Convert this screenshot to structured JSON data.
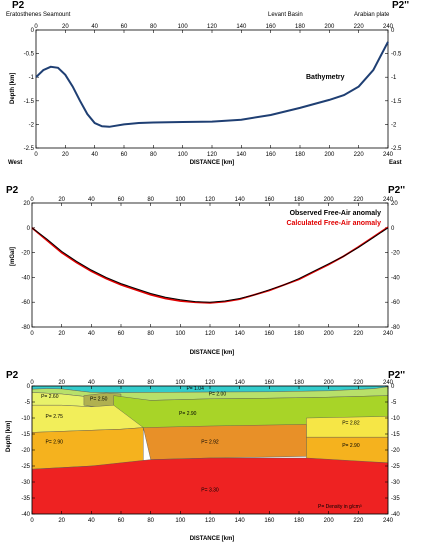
{
  "chart_data": [
    {
      "id": "bathymetry",
      "type": "line",
      "corner_left": "P2",
      "corner_right": "P2''",
      "top_labels": [
        "Eratosthenes Seamount",
        "Levant Basin",
        "Arabian plate"
      ],
      "series_label": "Bathymetry",
      "xlabel": "DISTANCE [km]",
      "ylabel": "Depth [km]",
      "end_left": "West",
      "end_right": "East",
      "xlim": [
        0,
        240
      ],
      "ylim": [
        -2.5,
        0
      ],
      "xticks": [
        0,
        20,
        40,
        60,
        80,
        100,
        120,
        140,
        160,
        180,
        200,
        220,
        240
      ],
      "yticks": [
        0,
        -0.5,
        -1,
        -1.5,
        -2,
        -2.5
      ],
      "line_color": "#1f3f73",
      "x": [
        0,
        5,
        10,
        15,
        20,
        25,
        30,
        35,
        40,
        45,
        50,
        60,
        70,
        80,
        100,
        120,
        140,
        160,
        180,
        200,
        210,
        220,
        230,
        240
      ],
      "y": [
        -1.0,
        -0.85,
        -0.78,
        -0.8,
        -0.95,
        -1.2,
        -1.5,
        -1.78,
        -1.97,
        -2.04,
        -2.05,
        -2.0,
        -1.97,
        -1.96,
        -1.95,
        -1.94,
        -1.9,
        -1.8,
        -1.65,
        -1.48,
        -1.38,
        -1.2,
        -0.85,
        -0.25
      ]
    },
    {
      "id": "gravity",
      "type": "line",
      "corner_left": "P2",
      "corner_right": "P2''",
      "xlabel": "DISTANCE [km]",
      "ylabel": "[mGal]",
      "xlim": [
        0,
        240
      ],
      "ylim": [
        -80,
        20
      ],
      "xticks": [
        0,
        20,
        40,
        60,
        80,
        100,
        120,
        140,
        160,
        180,
        200,
        220,
        240
      ],
      "yticks": [
        20,
        0,
        -20,
        -40,
        -60,
        -80
      ],
      "series": [
        {
          "name": "Observed Free-Air anomaly",
          "color": "#000000",
          "x": [
            0,
            10,
            20,
            30,
            40,
            50,
            60,
            70,
            80,
            90,
            100,
            110,
            120,
            130,
            140,
            150,
            160,
            170,
            180,
            190,
            200,
            210,
            220,
            230,
            240
          ],
          "y": [
            0,
            -9,
            -19,
            -27,
            -34,
            -40,
            -45,
            -49,
            -53,
            -56,
            -58,
            -59.5,
            -60,
            -59,
            -57,
            -54,
            -50,
            -46,
            -41,
            -35,
            -29,
            -23,
            -16,
            -8,
            0
          ]
        },
        {
          "name": "Calculated Free-Air anomaly",
          "color": "#e00000",
          "x": [
            0,
            10,
            20,
            30,
            40,
            50,
            60,
            70,
            80,
            90,
            100,
            110,
            120,
            130,
            140,
            150,
            160,
            170,
            180,
            190,
            200,
            210,
            220,
            230,
            240
          ],
          "y": [
            0,
            -10,
            -20,
            -28,
            -35,
            -41,
            -46,
            -50,
            -54,
            -57,
            -59,
            -60,
            -60.5,
            -59.5,
            -57.5,
            -54,
            -50.5,
            -46,
            -41.5,
            -35.5,
            -29.5,
            -23,
            -15.5,
            -7.5,
            0.5
          ]
        }
      ]
    },
    {
      "id": "density_model",
      "type": "area",
      "corner_left": "P2",
      "corner_right": "P2''",
      "xlabel": "DISTANCE [km]",
      "ylabel": "Depth [km]",
      "xlim": [
        0,
        240
      ],
      "ylim": [
        -40,
        0
      ],
      "xticks": [
        0,
        20,
        40,
        60,
        80,
        100,
        120,
        140,
        160,
        180,
        200,
        220,
        240
      ],
      "yticks": [
        0,
        -5,
        -10,
        -15,
        -20,
        -25,
        -30,
        -35,
        -40
      ],
      "legend_note": "P= Density in g/cm³",
      "layers": [
        {
          "label": "P= 1.04",
          "color": "#33cccc",
          "label_at": [
            110,
            -1.2
          ],
          "top": [
            [
              0,
              0
            ],
            [
              240,
              0
            ]
          ],
          "bottom": [
            [
              0,
              -1
            ],
            [
              10,
              -0.8
            ],
            [
              20,
              -0.9
            ],
            [
              40,
              -2
            ],
            [
              60,
              -2.05
            ],
            [
              100,
              -1.95
            ],
            [
              160,
              -1.8
            ],
            [
              200,
              -1.5
            ],
            [
              230,
              -0.85
            ],
            [
              240,
              -0.25
            ]
          ]
        },
        {
          "label": "P= 2.00",
          "color": "#b8e06a",
          "label_at": [
            125,
            -3
          ],
          "top": [
            [
              0,
              -1
            ],
            [
              10,
              -0.8
            ],
            [
              20,
              -0.9
            ],
            [
              40,
              -2
            ],
            [
              60,
              -2.05
            ],
            [
              100,
              -1.95
            ],
            [
              160,
              -1.8
            ],
            [
              200,
              -1.5
            ],
            [
              230,
              -0.85
            ],
            [
              240,
              -0.25
            ]
          ],
          "bottom": [
            [
              0,
              -2
            ],
            [
              20,
              -2.5
            ],
            [
              40,
              -3.5
            ],
            [
              60,
              -5
            ],
            [
              80,
              -4.5
            ],
            [
              120,
              -4
            ],
            [
              160,
              -3.8
            ],
            [
              200,
              -3.5
            ],
            [
              240,
              -3
            ]
          ]
        },
        {
          "label": "P= 2.60",
          "color": "#e8f26a",
          "label_at": [
            12,
            -3.8
          ],
          "top": [
            [
              0,
              -2
            ],
            [
              20,
              -2.5
            ],
            [
              40,
              -3.5
            ],
            [
              55,
              -2.5
            ]
          ],
          "bottom": [
            [
              0,
              -6
            ],
            [
              20,
              -6
            ],
            [
              40,
              -6.5
            ],
            [
              55,
              -6
            ]
          ]
        },
        {
          "label": "P= 2.50",
          "color": "#b0b050",
          "label_at": [
            45,
            -4.5
          ],
          "top": [
            [
              35,
              -3
            ],
            [
              50,
              -2.2
            ],
            [
              60,
              -2.5
            ]
          ],
          "bottom": [
            [
              35,
              -6
            ],
            [
              50,
              -7
            ],
            [
              60,
              -5
            ]
          ]
        },
        {
          "label": "P= 2.90",
          "color": "#a8d428",
          "label_at": [
            105,
            -9
          ],
          "top": [
            [
              55,
              -3
            ],
            [
              80,
              -4.5
            ],
            [
              120,
              -4
            ],
            [
              160,
              -3.8
            ],
            [
              200,
              -3.5
            ],
            [
              240,
              -3
            ]
          ],
          "bottom": [
            [
              55,
              -13
            ],
            [
              80,
              -14
            ],
            [
              120,
              -13.5
            ],
            [
              180,
              -12.5
            ],
            [
              200,
              -13
            ],
            [
              240,
              -13
            ]
          ]
        },
        {
          "label": "P= 2.75",
          "color": "#f2ee5a",
          "label_at": [
            15,
            -10
          ],
          "top": [
            [
              0,
              -6
            ],
            [
              20,
              -6
            ],
            [
              40,
              -6.5
            ],
            [
              55,
              -6
            ]
          ],
          "bottom": [
            [
              0,
              -14.5
            ],
            [
              30,
              -14
            ],
            [
              60,
              -13.5
            ],
            [
              75,
              -13
            ]
          ]
        },
        {
          "label": "P= 2.82",
          "color": "#f6e646",
          "label_at": [
            215,
            -12
          ],
          "top": [
            [
              185,
              -10
            ],
            [
              240,
              -9.5
            ]
          ],
          "bottom": [
            [
              185,
              -16
            ],
            [
              240,
              -16
            ]
          ]
        },
        {
          "label": "P= 2.90",
          "color": "#f5b21e",
          "label_at": [
            15,
            -18
          ],
          "top": [
            [
              0,
              -14.5
            ],
            [
              30,
              -14
            ],
            [
              60,
              -13.5
            ],
            [
              75,
              -13
            ]
          ],
          "bottom": [
            [
              0,
              -26
            ],
            [
              40,
              -25
            ],
            [
              75,
              -24
            ]
          ]
        },
        {
          "label": "P= 2.92",
          "color": "#e89028",
          "label_at": [
            120,
            -18
          ],
          "top": [
            [
              75,
              -13
            ],
            [
              120,
              -12.5
            ],
            [
              185,
              -12
            ]
          ],
          "bottom": [
            [
              80,
              -23
            ],
            [
              120,
              -22.5
            ],
            [
              185,
              -22
            ]
          ]
        },
        {
          "label": "P= 2.90",
          "color": "#f5b21e",
          "label_at": [
            215,
            -19
          ],
          "top": [
            [
              185,
              -16
            ],
            [
              240,
              -16
            ]
          ],
          "bottom": [
            [
              185,
              -23
            ],
            [
              240,
              -24
            ]
          ]
        },
        {
          "label": "P= 3.30",
          "color": "#ee2222",
          "label_at": [
            120,
            -33
          ],
          "top": [
            [
              0,
              -26
            ],
            [
              40,
              -25
            ],
            [
              80,
              -23
            ],
            [
              120,
              -22.5
            ],
            [
              185,
              -22.5
            ],
            [
              240,
              -24
            ]
          ],
          "bottom": [
            [
              0,
              -40
            ],
            [
              240,
              -40
            ]
          ]
        }
      ]
    }
  ]
}
